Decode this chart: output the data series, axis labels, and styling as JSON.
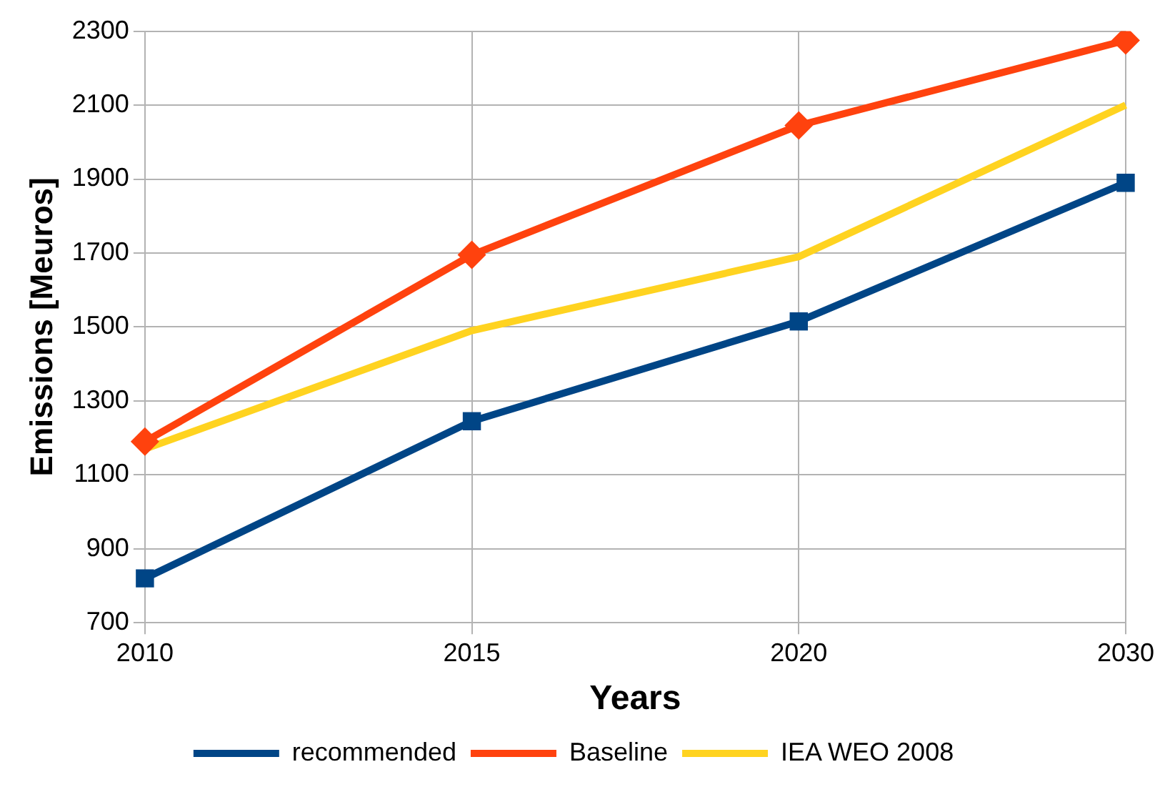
{
  "chart_data": {
    "type": "line",
    "xlabel": "Years",
    "ylabel": "Emissions [Meuros]",
    "categories": [
      "2010",
      "2015",
      "2020",
      "2030"
    ],
    "series": [
      {
        "name": "recommended",
        "color": "#004586",
        "marker": "square",
        "values": [
          820,
          1245,
          1515,
          1890
        ]
      },
      {
        "name": "Baseline",
        "color": "#ff420e",
        "marker": "diamond",
        "values": [
          1190,
          1695,
          2045,
          2275
        ]
      },
      {
        "name": "IEA WEO 2008",
        "color": "#ffd320",
        "marker": "none",
        "values": [
          1170,
          1490,
          1690,
          2100
        ]
      }
    ],
    "ylim": [
      700,
      2300
    ],
    "yticks": [
      700,
      900,
      1100,
      1300,
      1500,
      1700,
      1900,
      2100,
      2300
    ],
    "grid": true,
    "legend": "bottom"
  }
}
